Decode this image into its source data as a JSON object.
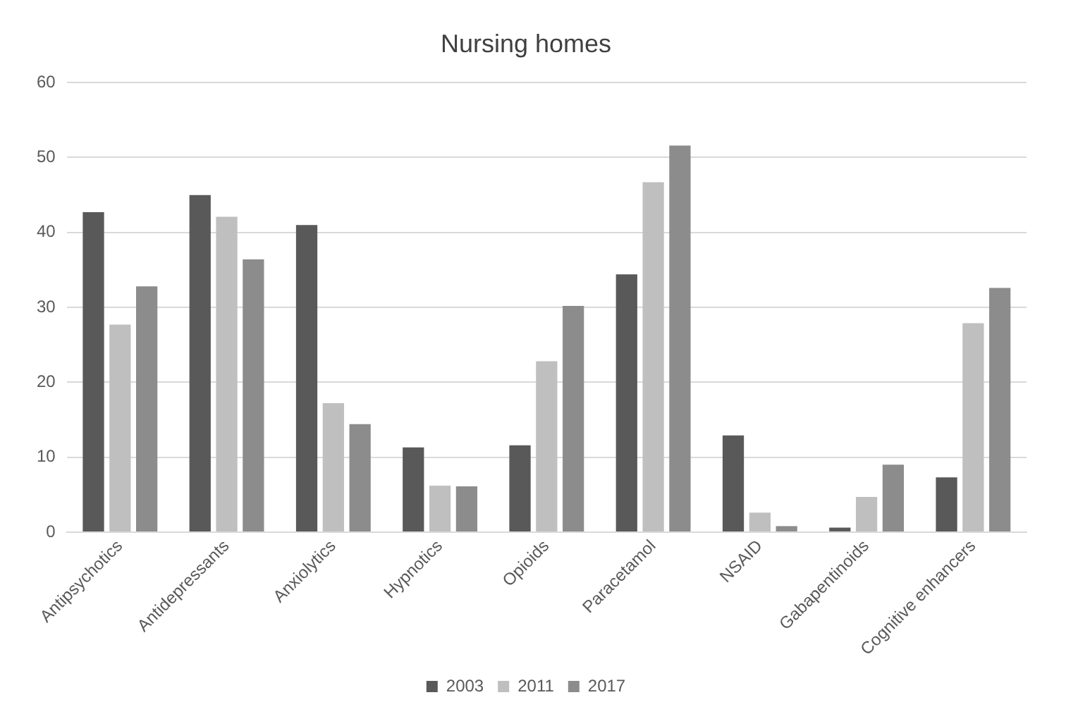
{
  "chart_data": {
    "type": "bar",
    "title": "Nursing homes",
    "categories": [
      "Antipsychotics",
      "Antidepressants",
      "Anxiolytics",
      "Hypnotics",
      "Opioids",
      "Paracetamol",
      "NSAID",
      "Gabapentinoids",
      "Cognitive enhancers"
    ],
    "series": [
      {
        "name": "2003",
        "color": "#595959",
        "values": [
          42.7,
          45,
          41,
          11.3,
          11.6,
          34.4,
          12.9,
          0.6,
          7.3
        ]
      },
      {
        "name": "2011",
        "color": "#bfbfbf",
        "values": [
          27.7,
          42.1,
          17.2,
          6.2,
          22.8,
          46.7,
          2.6,
          4.7,
          27.9
        ]
      },
      {
        "name": "2017",
        "color": "#8c8c8c",
        "values": [
          32.8,
          36.4,
          14.4,
          6.1,
          30.2,
          51.6,
          0.8,
          9,
          32.6
        ]
      }
    ],
    "ylim": [
      0,
      60
    ],
    "yticks": [
      0,
      10,
      20,
      30,
      40,
      50,
      60
    ],
    "grid": "y",
    "legend": "bottom"
  }
}
